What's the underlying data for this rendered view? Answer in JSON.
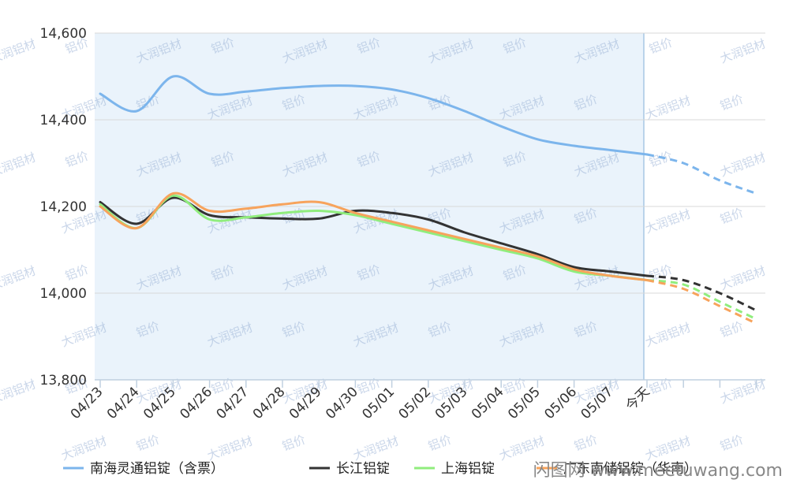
{
  "chart_data": {
    "type": "line",
    "ylim": [
      13800,
      14600
    ],
    "y_ticks": [
      13800,
      14000,
      14200,
      14400,
      14600
    ],
    "y_tick_labels": [
      "13,800",
      "14,000",
      "14,200",
      "14,400",
      "14,600"
    ],
    "categories": [
      "04/23",
      "04/24",
      "04/25",
      "04/26",
      "04/27",
      "04/28",
      "04/29",
      "04/30",
      "05/01",
      "05/02",
      "05/03",
      "05/04",
      "05/05",
      "05/06",
      "05/07",
      "今天",
      "",
      "",
      ""
    ],
    "today_index": 15,
    "history_highlight": {
      "from": "04/23",
      "to": "今天",
      "color": "#eaf3fb"
    },
    "grid": "horizontal",
    "legend_position": "bottom",
    "series": [
      {
        "name": "南海灵通铝锭（含票）",
        "color": "#7cb5ec",
        "values": [
          14460,
          14420,
          14500,
          14460,
          14465,
          14473,
          14478,
          14478,
          14470,
          14450,
          14420,
          14385,
          14355,
          14340,
          14330,
          14320,
          14300,
          14260,
          14230
        ]
      },
      {
        "name": "长江铝锭",
        "color": "#333333",
        "values": [
          14210,
          14160,
          14220,
          14180,
          14175,
          14172,
          14172,
          14190,
          14185,
          14170,
          14140,
          14115,
          14090,
          14060,
          14050,
          14040,
          14030,
          14000,
          13960
        ]
      },
      {
        "name": "上海铝锭",
        "color": "#90ed7d",
        "values": [
          14205,
          14150,
          14225,
          14170,
          14175,
          14185,
          14190,
          14180,
          14160,
          14140,
          14120,
          14100,
          14080,
          14050,
          14040,
          14030,
          14020,
          13980,
          13940
        ]
      },
      {
        "name": "广东南储铝锭（华南）",
        "color": "#f7a35c",
        "values": [
          14200,
          14150,
          14230,
          14190,
          14195,
          14205,
          14210,
          14185,
          14165,
          14145,
          14125,
          14105,
          14085,
          14055,
          14040,
          14030,
          14010,
          13970,
          13930
        ]
      }
    ]
  },
  "watermarks": {
    "brand_cn": "大润铝材",
    "price_cn": "铝价",
    "site": "闪图网 www.meetuwang.com"
  },
  "colors": {
    "axis": "#c0d0e0",
    "grid": "#d8d8d8",
    "today_line": "#a8c8e4",
    "plot_bg": "#eaf3fb"
  }
}
